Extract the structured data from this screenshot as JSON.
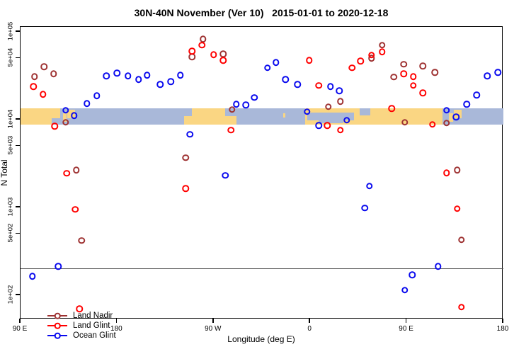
{
  "title": "30N-40N November (Ver 10)   2015-01-01 to 2020-12-18",
  "chart_data": {
    "type": "scatter",
    "title": "30N-40N November (Ver 10)   2015-01-01 to 2020-12-18",
    "xlabel": "Longitude (deg E)",
    "ylabel": "N Total",
    "x_axis": {
      "note": "longitude wrapped eastward, extended degrees east",
      "range": [
        90,
        540
      ],
      "ticks": [
        {
          "lon": 90,
          "label": "90 E"
        },
        {
          "lon": 180,
          "label": "180"
        },
        {
          "lon": 270,
          "label": "90 W"
        },
        {
          "lon": 360,
          "label": "0"
        },
        {
          "lon": 450,
          "label": "90 E"
        },
        {
          "lon": 540,
          "label": "180"
        }
      ]
    },
    "y_axis": {
      "scale": "log10",
      "log_range": [
        1.7258,
        5.0565
      ],
      "ticks": [
        {
          "n": 100000,
          "label": "1e+05"
        },
        {
          "n": 50000,
          "label": "5e+04"
        },
        {
          "n": 10000,
          "label": "1e+04"
        },
        {
          "n": 5000,
          "label": "5e+03"
        },
        {
          "n": 1000,
          "label": "1e+03"
        },
        {
          "n": 500,
          "label": "5e+02"
        },
        {
          "n": 100,
          "label": "1e+02"
        }
      ]
    },
    "reference_line_n": 200,
    "grid": false,
    "legend_position": "bottom-left",
    "series": [
      {
        "name": "Land Nadir",
        "color": "#9E3232",
        "points": [
          [
            112,
            40200
          ],
          [
            103,
            31000
          ],
          [
            121,
            33400
          ],
          [
            132,
            9290
          ],
          [
            260,
            83000
          ],
          [
            250,
            52200
          ],
          [
            279,
            56200
          ],
          [
            287,
            12970
          ],
          [
            244,
            3670
          ],
          [
            142,
            2670
          ],
          [
            147,
            418
          ],
          [
            377,
            14000
          ],
          [
            388,
            16200
          ],
          [
            417,
            50300
          ],
          [
            427,
            70300
          ],
          [
            438,
            30500
          ],
          [
            447,
            42600
          ],
          [
            448,
            9290
          ],
          [
            465,
            41000
          ],
          [
            476,
            34700
          ],
          [
            487,
            9120
          ],
          [
            497,
            2670
          ],
          [
            501,
            426
          ]
        ]
      },
      {
        "name": "Land Glint",
        "color": "#FF0000",
        "points": [
          [
            102,
            23900
          ],
          [
            111,
            19500
          ],
          [
            122,
            8450
          ],
          [
            133,
            2440
          ],
          [
            141,
            946
          ],
          [
            145,
            70
          ],
          [
            250,
            60500
          ],
          [
            259,
            70300
          ],
          [
            270,
            55200
          ],
          [
            279,
            47500
          ],
          [
            286,
            7570
          ],
          [
            244,
            1650
          ],
          [
            359,
            47500
          ],
          [
            368,
            24400
          ],
          [
            376,
            8610
          ],
          [
            388,
            7570
          ],
          [
            399,
            38800
          ],
          [
            407,
            46700
          ],
          [
            417,
            54200
          ],
          [
            427,
            59400
          ],
          [
            436,
            13460
          ],
          [
            447,
            33400
          ],
          [
            456,
            31000
          ],
          [
            456,
            24400
          ],
          [
            465,
            20200
          ],
          [
            474,
            8790
          ],
          [
            487,
            2480
          ],
          [
            497,
            964
          ],
          [
            501,
            73
          ]
        ]
      },
      {
        "name": "Ocean Glint",
        "color": "#0A0AEE",
        "points": [
          [
            101,
            165
          ],
          [
            125,
            214
          ],
          [
            132,
            12740
          ],
          [
            140,
            11170
          ],
          [
            152,
            15300
          ],
          [
            161,
            18800
          ],
          [
            170,
            31600
          ],
          [
            180,
            34000
          ],
          [
            190,
            31600
          ],
          [
            200,
            28800
          ],
          [
            208,
            32200
          ],
          [
            220,
            25300
          ],
          [
            230,
            27200
          ],
          [
            239,
            32200
          ],
          [
            248,
            6780
          ],
          [
            281,
            2310
          ],
          [
            291,
            15000
          ],
          [
            300,
            14750
          ],
          [
            308,
            17800
          ],
          [
            320,
            38800
          ],
          [
            328,
            45000
          ],
          [
            337,
            28800
          ],
          [
            348,
            25300
          ],
          [
            357,
            12300
          ],
          [
            368,
            8610
          ],
          [
            379,
            23900
          ],
          [
            387,
            21400
          ],
          [
            394,
            9820
          ],
          [
            411,
            982
          ],
          [
            415,
            1750
          ],
          [
            448,
            114
          ],
          [
            455,
            171
          ],
          [
            479,
            214
          ],
          [
            487,
            12740
          ],
          [
            496,
            10760
          ],
          [
            506,
            15000
          ],
          [
            515,
            19140
          ],
          [
            525,
            31600
          ],
          [
            535,
            34700
          ]
        ]
      }
    ],
    "map_band": {
      "description": "world-map strip (30N-40N) drawn across plot",
      "n_top": 13460,
      "n_bottom": 8790,
      "ocean_color": "#A9B8D9",
      "land_color": "#FAD683",
      "land_patches": [
        {
          "lon": [
            90,
            127
          ],
          "y": [
            0,
            1
          ]
        },
        {
          "lon": [
            129.5,
            133
          ],
          "y": [
            0.3,
            0.85
          ]
        },
        {
          "lon": [
            133.5,
            141
          ],
          "y": [
            0.08,
            0.6
          ]
        },
        {
          "lon": [
            250,
            281
          ],
          "y": [
            0,
            1
          ]
        },
        {
          "lon": [
            242.5,
            291
          ],
          "y": [
            0.5,
            1
          ]
        },
        {
          "lon": [
            334.5,
            336.5
          ],
          "y": [
            0.3,
            0.55
          ]
        },
        {
          "lon": [
            355,
            483.5
          ],
          "y": [
            0,
            1
          ]
        },
        {
          "lon": [
            489.5,
            493
          ],
          "y": [
            0.3,
            0.85
          ]
        },
        {
          "lon": [
            493.5,
            501
          ],
          "y": [
            0.08,
            0.6
          ]
        }
      ],
      "ocean_patches": [
        {
          "lon": [
            119,
            127
          ],
          "y": [
            0.62,
            1
          ]
        },
        {
          "lon": [
            357.5,
            401
          ],
          "y": [
            0.28,
            0.72
          ]
        },
        {
          "lon": [
            368,
            391
          ],
          "y": [
            0.6,
            0.93
          ]
        },
        {
          "lon": [
            406,
            416
          ],
          "y": [
            0,
            0.45
          ]
        }
      ]
    }
  }
}
